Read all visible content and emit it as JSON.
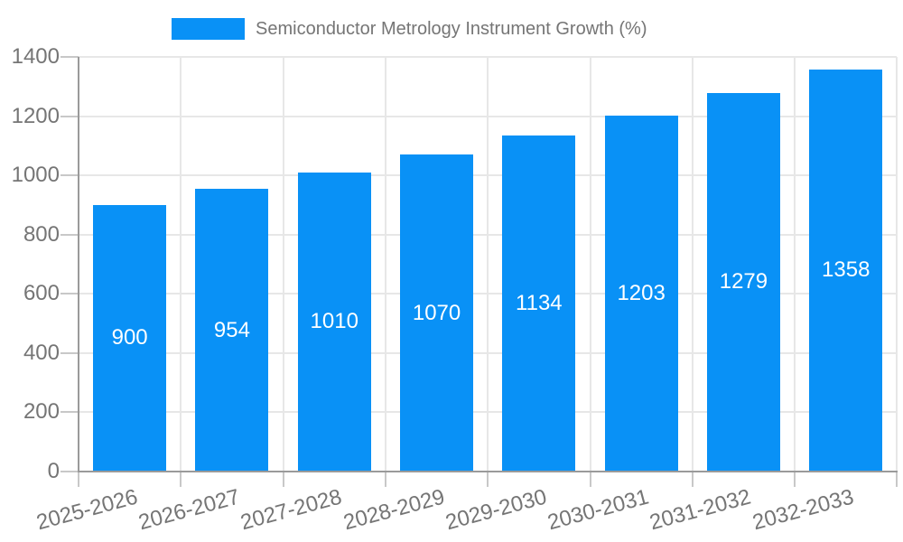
{
  "legend": {
    "label": "Semiconductor Metrology Instrument Growth (%)"
  },
  "chart_data": {
    "type": "bar",
    "title": "Semiconductor Metrology Instrument Growth (%)",
    "categories": [
      "2025-2026",
      "2026-2027",
      "2027-2028",
      "2028-2029",
      "2029-2030",
      "2030-2031",
      "2031-2032",
      "2032-2033"
    ],
    "values": [
      900,
      954,
      1010,
      1070,
      1134,
      1203,
      1279,
      1358
    ],
    "series_name": "Semiconductor Metrology Instrument Growth (%)",
    "xlabel": "",
    "ylabel": "",
    "ylim": [
      0,
      1400
    ],
    "yticks": [
      0,
      200,
      400,
      600,
      800,
      1000,
      1200,
      1400
    ],
    "grid": true,
    "legend_position": "top",
    "x_label_rotation_deg": -15,
    "bar_color": "#0991f6",
    "bar_label_color": "#ffffff",
    "axis_text_color": "#757575",
    "grid_color": "#e7e7e7",
    "axis_line_color": "#9a9a9a"
  }
}
